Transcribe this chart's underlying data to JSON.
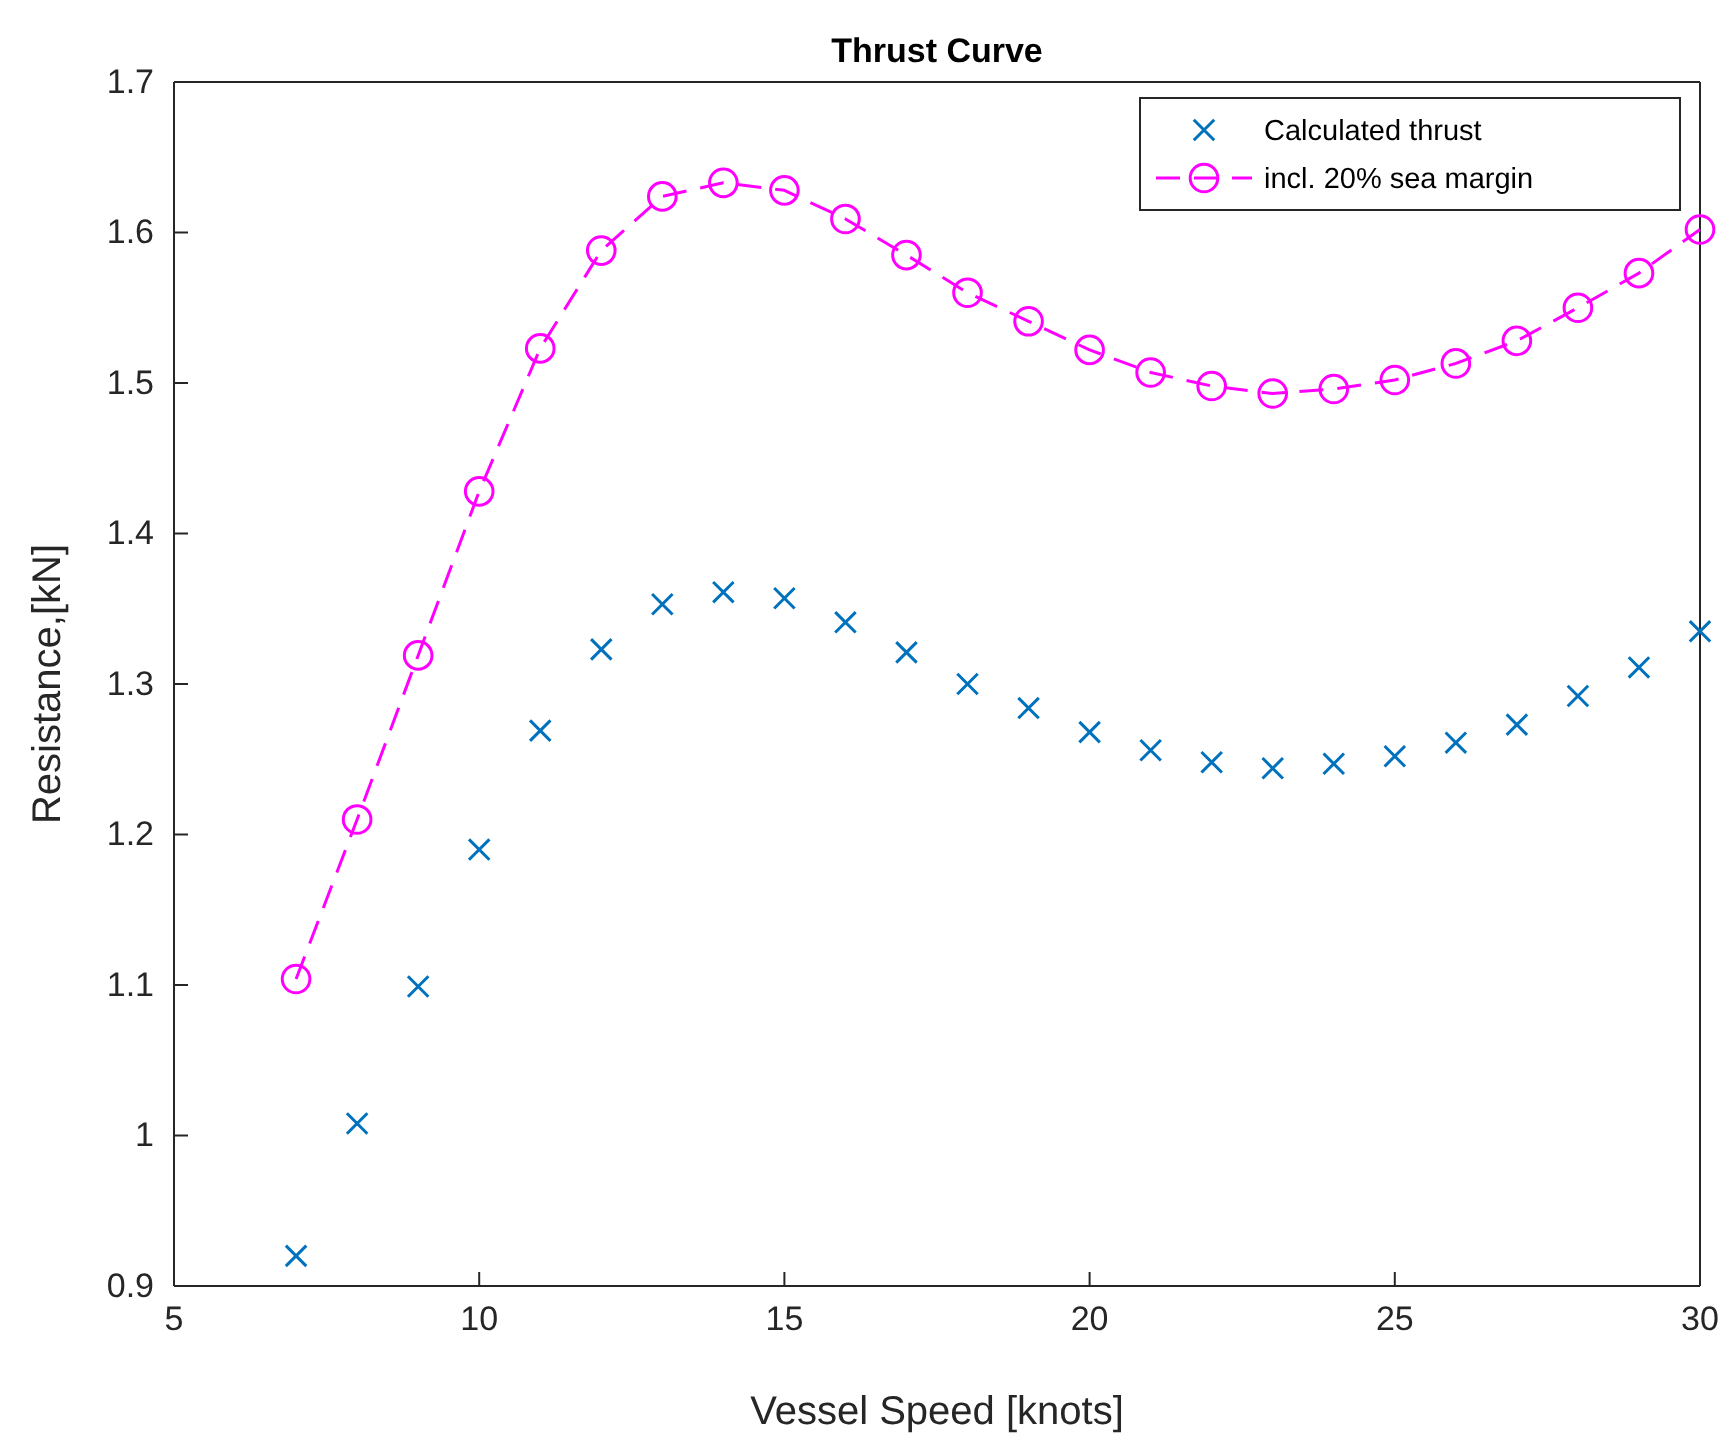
{
  "chart_data": {
    "type": "line",
    "title": "Thrust Curve",
    "xlabel": "Vessel Speed [knots]",
    "ylabel": "Resistance,[kN]",
    "x": [
      7,
      8,
      9,
      10,
      11,
      12,
      13,
      14,
      15,
      16,
      17,
      18,
      19,
      20,
      21,
      22,
      23,
      24,
      25,
      26,
      27,
      28,
      29,
      30
    ],
    "series": [
      {
        "name": "Calculated thrust",
        "type": "scatter",
        "marker": "cross",
        "color": "#0072bd",
        "values": [
          0.92,
          1.008,
          1.099,
          1.19,
          1.269,
          1.323,
          1.353,
          1.361,
          1.357,
          1.341,
          1.321,
          1.3,
          1.284,
          1.268,
          1.256,
          1.248,
          1.244,
          1.247,
          1.252,
          1.261,
          1.273,
          1.292,
          1.311,
          1.335
        ]
      },
      {
        "name": "incl. 20% sea margin",
        "marker": "circle",
        "line_style": "dashed",
        "color": "#ff00ff",
        "values": [
          1.104,
          1.21,
          1.319,
          1.428,
          1.523,
          1.588,
          1.624,
          1.633,
          1.628,
          1.609,
          1.585,
          1.56,
          1.541,
          1.522,
          1.507,
          1.498,
          1.493,
          1.496,
          1.502,
          1.513,
          1.528,
          1.55,
          1.573,
          1.602
        ]
      }
    ],
    "xlim": [
      5,
      30
    ],
    "xticks": [
      5,
      10,
      15,
      20,
      25,
      30
    ],
    "ylim": [
      0.9,
      1.7
    ],
    "yticks": [
      0.9,
      1,
      1.1,
      1.2,
      1.3,
      1.4,
      1.5,
      1.6,
      1.7
    ],
    "grid": false,
    "legend": "top right"
  }
}
